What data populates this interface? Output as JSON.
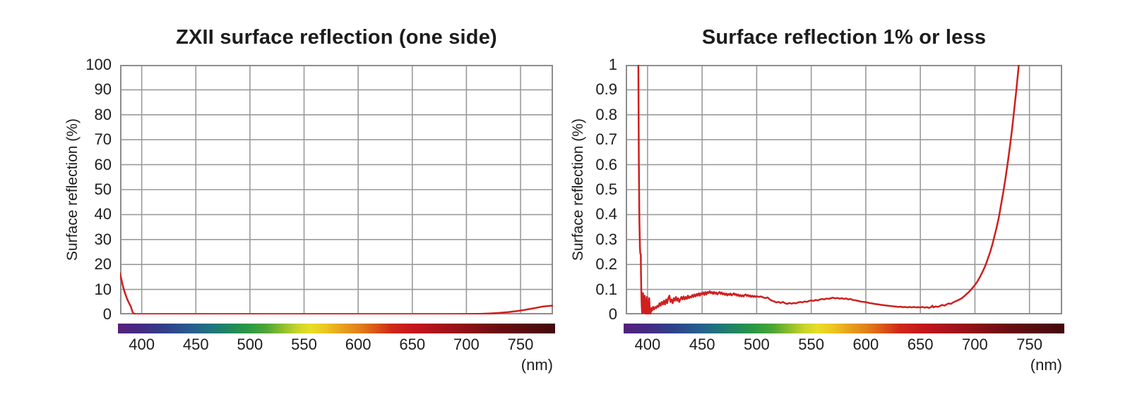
{
  "figure": {
    "background": "#ffffff",
    "text_color": "#1c1c1e",
    "grid_color": "#9a9a9a",
    "frame_color": "#8d8d8d",
    "line_color": "#cf1f1f"
  },
  "chart_data": [
    {
      "type": "line",
      "title": "ZXII surface reflection (one side)",
      "ylabel": "Surface reflection (%)",
      "x_unit": "(nm)",
      "xlim": [
        380,
        780
      ],
      "ylim": [
        0,
        100
      ],
      "grid": true,
      "legend": "none",
      "line_color": "#cf1f1f",
      "x_ticks": [
        {
          "v": 400,
          "t": "400"
        },
        {
          "v": 450,
          "t": "450"
        },
        {
          "v": 500,
          "t": "500"
        },
        {
          "v": 550,
          "t": "550"
        },
        {
          "v": 600,
          "t": "600"
        },
        {
          "v": 650,
          "t": "650"
        },
        {
          "v": 700,
          "t": "700"
        },
        {
          "v": 750,
          "t": "750"
        }
      ],
      "y_ticks": [
        {
          "v": 0,
          "t": "0"
        },
        {
          "v": 10,
          "t": "10"
        },
        {
          "v": 20,
          "t": "20"
        },
        {
          "v": 30,
          "t": "30"
        },
        {
          "v": 40,
          "t": "40"
        },
        {
          "v": 50,
          "t": "50"
        },
        {
          "v": 60,
          "t": "60"
        },
        {
          "v": 70,
          "t": "70"
        },
        {
          "v": 80,
          "t": "80"
        },
        {
          "v": 90,
          "t": "90"
        },
        {
          "v": 100,
          "t": "100"
        }
      ],
      "series": [
        {
          "name": "surface reflection",
          "points_key": "series_points"
        }
      ]
    },
    {
      "type": "line",
      "title": "Surface reflection 1% or less",
      "ylabel": "Surface reflection (%)",
      "x_unit": "(nm)",
      "xlim": [
        380,
        780
      ],
      "ylim": [
        0,
        1
      ],
      "grid": true,
      "legend": "none",
      "line_color": "#cf1f1f",
      "x_ticks": [
        {
          "v": 400,
          "t": "400"
        },
        {
          "v": 450,
          "t": "450"
        },
        {
          "v": 500,
          "t": "500"
        },
        {
          "v": 550,
          "t": "550"
        },
        {
          "v": 600,
          "t": "600"
        },
        {
          "v": 650,
          "t": "650"
        },
        {
          "v": 700,
          "t": "700"
        },
        {
          "v": 750,
          "t": "750"
        }
      ],
      "y_ticks": [
        {
          "v": 0,
          "t": "0"
        },
        {
          "v": 0.1,
          "t": "0.1"
        },
        {
          "v": 0.2,
          "t": "0.2"
        },
        {
          "v": 0.3,
          "t": "0.3"
        },
        {
          "v": 0.4,
          "t": "0.4"
        },
        {
          "v": 0.5,
          "t": "0.5"
        },
        {
          "v": 0.6,
          "t": "0.6"
        },
        {
          "v": 0.7,
          "t": "0.7"
        },
        {
          "v": 0.8,
          "t": "0.8"
        },
        {
          "v": 0.9,
          "t": "0.9"
        },
        {
          "v": 1,
          "t": "1"
        }
      ],
      "series": [
        {
          "name": "surface reflection",
          "points_key": "series_points"
        }
      ]
    }
  ],
  "series_points": [
    [
      380,
      16.5
    ],
    [
      381,
      14.4
    ],
    [
      382,
      12.5
    ],
    [
      383,
      10.8
    ],
    [
      384,
      9.3
    ],
    [
      385,
      8.0
    ],
    [
      386,
      6.8
    ],
    [
      387,
      5.7
    ],
    [
      388,
      4.8
    ],
    [
      389,
      3.9
    ],
    [
      390,
      3.1
    ],
    [
      390.5,
      2.4
    ],
    [
      391,
      1.7
    ],
    [
      391.5,
      1.05
    ],
    [
      392,
      0.62
    ],
    [
      392.5,
      0.38
    ],
    [
      393,
      0.27
    ],
    [
      393.3,
      0.245
    ],
    [
      393.8,
      0.24
    ],
    [
      394,
      0.16
    ],
    [
      394.3,
      0.09
    ],
    [
      394.6,
      0.04
    ],
    [
      395,
      0.005
    ],
    [
      395.4,
      0.03
    ],
    [
      395.8,
      0.085
    ],
    [
      396.2,
      0.04
    ],
    [
      396.6,
      0.005
    ],
    [
      397,
      0.03
    ],
    [
      397.4,
      0.075
    ],
    [
      397.8,
      0.05
    ],
    [
      398.2,
      0.005
    ],
    [
      398.6,
      0
    ],
    [
      399,
      0.04
    ],
    [
      399.4,
      0.07
    ],
    [
      399.8,
      0.03
    ],
    [
      400.2,
      0
    ],
    [
      400.6,
      0
    ],
    [
      401,
      0.045
    ],
    [
      401.5,
      0.065
    ],
    [
      402,
      0.02
    ],
    [
      402.5,
      0
    ],
    [
      403,
      0.01
    ],
    [
      403.5,
      0.025
    ],
    [
      404,
      0.015
    ],
    [
      404.5,
      0.02
    ],
    [
      405,
      0.03
    ],
    [
      406,
      0.02
    ],
    [
      407,
      0.03
    ],
    [
      408,
      0.025
    ],
    [
      409,
      0.035
    ],
    [
      410,
      0.03
    ],
    [
      411,
      0.045
    ],
    [
      412,
      0.035
    ],
    [
      413,
      0.05
    ],
    [
      414,
      0.04
    ],
    [
      415,
      0.055
    ],
    [
      416,
      0.04
    ],
    [
      417,
      0.06
    ],
    [
      418,
      0.045
    ],
    [
      419,
      0.065
    ],
    [
      420,
      0.075
    ],
    [
      421,
      0.05
    ],
    [
      422,
      0.06
    ],
    [
      423,
      0.045
    ],
    [
      424,
      0.065
    ],
    [
      425,
      0.055
    ],
    [
      426,
      0.07
    ],
    [
      427,
      0.055
    ],
    [
      428,
      0.065
    ],
    [
      429,
      0.05
    ],
    [
      430,
      0.06
    ],
    [
      431,
      0.07
    ],
    [
      432,
      0.06
    ],
    [
      433,
      0.072
    ],
    [
      434,
      0.06
    ],
    [
      435,
      0.07
    ],
    [
      436,
      0.062
    ],
    [
      437,
      0.075
    ],
    [
      438,
      0.065
    ],
    [
      439,
      0.072
    ],
    [
      440,
      0.068
    ],
    [
      441,
      0.078
    ],
    [
      442,
      0.07
    ],
    [
      443,
      0.08
    ],
    [
      444,
      0.072
    ],
    [
      445,
      0.082
    ],
    [
      446,
      0.075
    ],
    [
      447,
      0.085
    ],
    [
      448,
      0.075
    ],
    [
      449,
      0.085
    ],
    [
      450,
      0.08
    ],
    [
      451,
      0.088
    ],
    [
      452,
      0.078
    ],
    [
      453,
      0.09
    ],
    [
      454,
      0.08
    ],
    [
      455,
      0.09
    ],
    [
      456,
      0.085
    ],
    [
      457,
      0.093
    ],
    [
      458,
      0.085
    ],
    [
      459,
      0.09
    ],
    [
      460,
      0.082
    ],
    [
      461,
      0.09
    ],
    [
      462,
      0.083
    ],
    [
      463,
      0.088
    ],
    [
      464,
      0.08
    ],
    [
      465,
      0.086
    ],
    [
      466,
      0.09
    ],
    [
      467,
      0.082
    ],
    [
      468,
      0.088
    ],
    [
      469,
      0.08
    ],
    [
      470,
      0.085
    ],
    [
      471,
      0.078
    ],
    [
      472,
      0.084
    ],
    [
      473,
      0.076
    ],
    [
      474,
      0.082
    ],
    [
      475,
      0.078
    ],
    [
      476,
      0.084
    ],
    [
      477,
      0.076
    ],
    [
      478,
      0.08
    ],
    [
      479,
      0.085
    ],
    [
      480,
      0.078
    ],
    [
      481,
      0.082
    ],
    [
      482,
      0.075
    ],
    [
      483,
      0.08
    ],
    [
      484,
      0.073
    ],
    [
      485,
      0.078
    ],
    [
      486,
      0.072
    ],
    [
      487,
      0.077
    ],
    [
      488,
      0.072
    ],
    [
      489,
      0.078
    ],
    [
      490,
      0.08
    ],
    [
      491,
      0.074
    ],
    [
      492,
      0.078
    ],
    [
      493,
      0.072
    ],
    [
      494,
      0.076
    ],
    [
      495,
      0.07
    ],
    [
      496,
      0.075
    ],
    [
      497,
      0.07
    ],
    [
      498,
      0.074
    ],
    [
      499,
      0.07
    ],
    [
      500,
      0.073
    ],
    [
      502,
      0.07
    ],
    [
      504,
      0.072
    ],
    [
      506,
      0.068
    ],
    [
      508,
      0.065
    ],
    [
      510,
      0.068
    ],
    [
      512,
      0.06
    ],
    [
      514,
      0.055
    ],
    [
      516,
      0.052
    ],
    [
      518,
      0.048
    ],
    [
      520,
      0.05
    ],
    [
      522,
      0.046
    ],
    [
      524,
      0.05
    ],
    [
      526,
      0.045
    ],
    [
      528,
      0.042
    ],
    [
      530,
      0.046
    ],
    [
      532,
      0.043
    ],
    [
      534,
      0.046
    ],
    [
      536,
      0.044
    ],
    [
      538,
      0.048
    ],
    [
      540,
      0.05
    ],
    [
      542,
      0.048
    ],
    [
      544,
      0.052
    ],
    [
      546,
      0.05
    ],
    [
      548,
      0.054
    ],
    [
      550,
      0.056
    ],
    [
      552,
      0.054
    ],
    [
      554,
      0.058
    ],
    [
      556,
      0.056
    ],
    [
      558,
      0.06
    ],
    [
      560,
      0.062
    ],
    [
      562,
      0.06
    ],
    [
      564,
      0.064
    ],
    [
      566,
      0.062
    ],
    [
      568,
      0.065
    ],
    [
      570,
      0.067
    ],
    [
      572,
      0.064
    ],
    [
      574,
      0.066
    ],
    [
      576,
      0.063
    ],
    [
      578,
      0.065
    ],
    [
      580,
      0.062
    ],
    [
      582,
      0.064
    ],
    [
      584,
      0.06
    ],
    [
      586,
      0.062
    ],
    [
      588,
      0.058
    ],
    [
      590,
      0.057
    ],
    [
      592,
      0.055
    ],
    [
      594,
      0.053
    ],
    [
      596,
      0.051
    ],
    [
      598,
      0.05
    ],
    [
      600,
      0.049
    ],
    [
      602,
      0.047
    ],
    [
      604,
      0.045
    ],
    [
      606,
      0.044
    ],
    [
      608,
      0.042
    ],
    [
      610,
      0.041
    ],
    [
      612,
      0.04
    ],
    [
      614,
      0.038
    ],
    [
      616,
      0.037
    ],
    [
      618,
      0.036
    ],
    [
      620,
      0.035
    ],
    [
      622,
      0.034
    ],
    [
      624,
      0.033
    ],
    [
      626,
      0.032
    ],
    [
      628,
      0.031
    ],
    [
      630,
      0.03
    ],
    [
      632,
      0.031
    ],
    [
      634,
      0.029
    ],
    [
      636,
      0.03
    ],
    [
      638,
      0.028
    ],
    [
      640,
      0.03
    ],
    [
      642,
      0.028
    ],
    [
      644,
      0.03
    ],
    [
      646,
      0.028
    ],
    [
      648,
      0.029
    ],
    [
      650,
      0.028
    ],
    [
      652,
      0.03
    ],
    [
      654,
      0.027
    ],
    [
      656,
      0.029
    ],
    [
      658,
      0.026
    ],
    [
      660,
      0.03
    ],
    [
      661,
      0.035
    ],
    [
      662,
      0.028
    ],
    [
      664,
      0.032
    ],
    [
      666,
      0.03
    ],
    [
      668,
      0.034
    ],
    [
      670,
      0.038
    ],
    [
      672,
      0.035
    ],
    [
      674,
      0.04
    ],
    [
      676,
      0.044
    ],
    [
      678,
      0.042
    ],
    [
      680,
      0.048
    ],
    [
      682,
      0.052
    ],
    [
      684,
      0.056
    ],
    [
      686,
      0.06
    ],
    [
      688,
      0.065
    ],
    [
      690,
      0.072
    ],
    [
      692,
      0.08
    ],
    [
      694,
      0.088
    ],
    [
      696,
      0.097
    ],
    [
      698,
      0.107
    ],
    [
      700,
      0.118
    ],
    [
      702,
      0.13
    ],
    [
      704,
      0.145
    ],
    [
      706,
      0.162
    ],
    [
      708,
      0.18
    ],
    [
      710,
      0.2
    ],
    [
      712,
      0.225
    ],
    [
      714,
      0.25
    ],
    [
      716,
      0.28
    ],
    [
      718,
      0.315
    ],
    [
      720,
      0.35
    ],
    [
      722,
      0.39
    ],
    [
      724,
      0.44
    ],
    [
      726,
      0.49
    ],
    [
      728,
      0.545
    ],
    [
      730,
      0.605
    ],
    [
      732,
      0.67
    ],
    [
      734,
      0.74
    ],
    [
      736,
      0.82
    ],
    [
      738,
      0.9
    ],
    [
      740,
      0.99
    ],
    [
      742,
      1.09
    ],
    [
      744,
      1.19
    ],
    [
      746,
      1.3
    ],
    [
      748,
      1.42
    ],
    [
      750,
      1.55
    ],
    [
      752,
      1.68
    ],
    [
      754,
      1.82
    ],
    [
      756,
      1.97
    ],
    [
      758,
      2.12
    ],
    [
      760,
      2.28
    ],
    [
      762,
      2.44
    ],
    [
      764,
      2.6
    ],
    [
      766,
      2.77
    ],
    [
      768,
      2.95
    ],
    [
      770,
      3.1
    ],
    [
      772,
      3.2
    ],
    [
      774,
      3.3
    ],
    [
      776,
      3.4
    ],
    [
      778,
      3.45
    ],
    [
      780,
      3.5
    ]
  ],
  "spectrum_gradient": [
    [
      0.0,
      "#54217c"
    ],
    [
      0.05,
      "#452a82"
    ],
    [
      0.11,
      "#30418a"
    ],
    [
      0.175,
      "#25608e"
    ],
    [
      0.225,
      "#1e7a76"
    ],
    [
      0.26,
      "#218a58"
    ],
    [
      0.3,
      "#2b9a42"
    ],
    [
      0.34,
      "#4ea636"
    ],
    [
      0.375,
      "#8cbd2d"
    ],
    [
      0.41,
      "#c8d42a"
    ],
    [
      0.44,
      "#e8dd28"
    ],
    [
      0.475,
      "#ecc621"
    ],
    [
      0.51,
      "#e8a31e"
    ],
    [
      0.55,
      "#e2811a"
    ],
    [
      0.59,
      "#d95517"
    ],
    [
      0.625,
      "#d02818"
    ],
    [
      0.675,
      "#c5161d"
    ],
    [
      0.75,
      "#a2121a"
    ],
    [
      0.8,
      "#8c1016"
    ],
    [
      0.875,
      "#680d11"
    ],
    [
      1.0,
      "#430a0c"
    ]
  ]
}
